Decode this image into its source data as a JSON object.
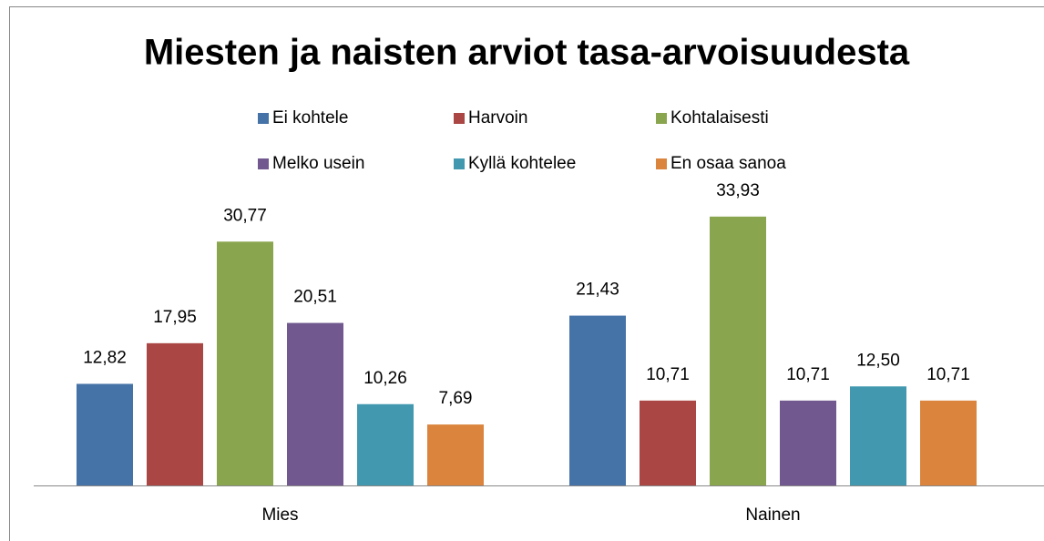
{
  "chart_data": {
    "type": "bar",
    "title": "Miesten ja naisten arviot tasa-arvoisuudesta",
    "categories": [
      "Mies",
      "Nainen"
    ],
    "series": [
      {
        "name": "Ei kohtele",
        "color": "#4572a7",
        "values": [
          12.82,
          21.43
        ],
        "value_labels": [
          "12,82",
          "21,43"
        ]
      },
      {
        "name": "Harvoin",
        "color": "#aa4643",
        "values": [
          17.95,
          10.71
        ],
        "value_labels": [
          "17,95",
          "10,71"
        ]
      },
      {
        "name": "Kohtalaisesti",
        "color": "#89a54e",
        "values": [
          30.77,
          33.93
        ],
        "value_labels": [
          "30,77",
          "33,93"
        ]
      },
      {
        "name": "Melko usein",
        "color": "#71588f",
        "values": [
          20.51,
          10.71
        ],
        "value_labels": [
          "20,51",
          "10,71"
        ]
      },
      {
        "name": "Kyllä kohtelee",
        "color": "#4198af",
        "values": [
          10.26,
          12.5
        ],
        "value_labels": [
          "10,26",
          "12,50"
        ]
      },
      {
        "name": "En osaa sanoa",
        "color": "#db843d",
        "values": [
          7.69,
          10.71
        ],
        "value_labels": [
          "7,69",
          "10,71"
        ]
      }
    ],
    "ylim": [
      0,
      40
    ],
    "legend": "top"
  }
}
